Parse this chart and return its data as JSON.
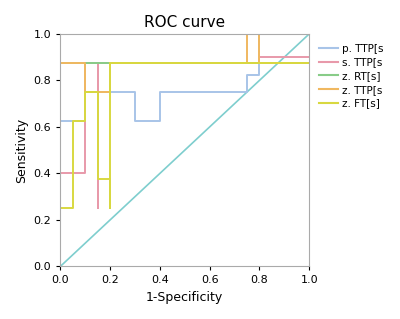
{
  "title": "ROC curve",
  "xlabel": "1-Specificity",
  "ylabel": "Sensitivity",
  "xlim": [
    0.0,
    1.0
  ],
  "ylim": [
    0.0,
    1.0
  ],
  "xticks": [
    0.0,
    0.2,
    0.4,
    0.6,
    0.8,
    1.0
  ],
  "yticks": [
    0.0,
    0.2,
    0.4,
    0.6,
    0.8,
    1.0
  ],
  "diagonal": {
    "color": "#7ecece",
    "lw": 1.2
  },
  "curves": [
    {
      "label": "p. TTP[s",
      "color": "#a8c4e8",
      "lw": 1.4,
      "points": [
        [
          0.0,
          0.5
        ],
        [
          0.0,
          0.625
        ],
        [
          0.1,
          0.625
        ],
        [
          0.1,
          0.75
        ],
        [
          0.3,
          0.75
        ],
        [
          0.3,
          0.625
        ],
        [
          0.4,
          0.625
        ],
        [
          0.4,
          0.75
        ],
        [
          0.75,
          0.75
        ],
        [
          0.75,
          0.825
        ],
        [
          0.8,
          0.825
        ],
        [
          0.8,
          1.0
        ],
        [
          1.0,
          1.0
        ]
      ]
    },
    {
      "label": "s. TTP[s",
      "color": "#e899aa",
      "lw": 1.4,
      "points": [
        [
          0.0,
          0.125
        ],
        [
          0.0,
          0.4
        ],
        [
          0.1,
          0.4
        ],
        [
          0.1,
          0.875
        ],
        [
          0.15,
          0.875
        ],
        [
          0.15,
          0.25
        ],
        [
          0.15,
          0.875
        ],
        [
          0.8,
          0.875
        ],
        [
          0.8,
          0.9
        ],
        [
          1.0,
          0.9
        ]
      ]
    },
    {
      "label": "z. RT[s]",
      "color": "#88cc88",
      "lw": 1.4,
      "points": [
        [
          0.0,
          0.875
        ],
        [
          0.1,
          0.875
        ],
        [
          0.1,
          0.875
        ],
        [
          1.0,
          0.875
        ]
      ]
    },
    {
      "label": "z. TTP[s",
      "color": "#f0b860",
      "lw": 1.4,
      "points": [
        [
          0.0,
          0.25
        ],
        [
          0.0,
          0.875
        ],
        [
          0.1,
          0.875
        ],
        [
          0.1,
          0.75
        ],
        [
          0.2,
          0.75
        ],
        [
          0.2,
          0.875
        ],
        [
          0.75,
          0.875
        ],
        [
          0.75,
          1.0
        ],
        [
          0.8,
          1.0
        ],
        [
          0.8,
          0.875
        ],
        [
          1.0,
          0.875
        ]
      ]
    },
    {
      "label": "z. FT[s]",
      "color": "#d8d840",
      "lw": 1.4,
      "points": [
        [
          0.0,
          0.125
        ],
        [
          0.0,
          0.25
        ],
        [
          0.05,
          0.25
        ],
        [
          0.05,
          0.625
        ],
        [
          0.1,
          0.625
        ],
        [
          0.1,
          0.75
        ],
        [
          0.15,
          0.75
        ],
        [
          0.15,
          0.375
        ],
        [
          0.2,
          0.375
        ],
        [
          0.2,
          0.25
        ],
        [
          0.2,
          0.875
        ],
        [
          1.0,
          0.875
        ]
      ]
    }
  ],
  "legend_labels": [
    "p. TTP[s",
    "s. TTP[s",
    "z. RT[s]",
    "z. TTP[s",
    "z. FT[s]"
  ],
  "figsize": [
    4.0,
    3.19
  ],
  "dpi": 100,
  "title_fontsize": 11,
  "axis_fontsize": 9,
  "tick_fontsize": 8,
  "legend_fontsize": 7.5
}
